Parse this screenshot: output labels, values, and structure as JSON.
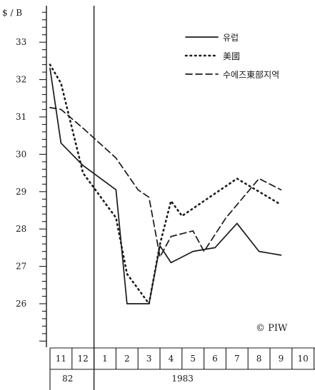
{
  "chart_data": {
    "type": "line",
    "ylabel": "$ / B",
    "ylim": [
      25,
      34
    ],
    "yticks": [
      26,
      27,
      28,
      29,
      30,
      31,
      32,
      33
    ],
    "x_months": [
      "11",
      "12",
      "1",
      "2",
      "3",
      "4",
      "5",
      "6",
      "7",
      "8",
      "9",
      "10"
    ],
    "year_groups": [
      {
        "label": "82",
        "months": [
          "11",
          "12"
        ]
      },
      {
        "label": "1983",
        "months": [
          "1",
          "2",
          "3",
          "4",
          "5",
          "6",
          "7",
          "8",
          "9",
          "10"
        ]
      }
    ],
    "legend_position": "top-right",
    "copyright": "© PIW",
    "series": [
      {
        "name": "유럽",
        "style": "solid",
        "points": [
          {
            "x": 11,
            "y": 32.3
          },
          {
            "x": 11.5,
            "y": 30.3
          },
          {
            "x": 12.5,
            "y": 29.7
          },
          {
            "x": 2,
            "y": 29.05
          },
          {
            "x": 2.5,
            "y": 26.0
          },
          {
            "x": 3.5,
            "y": 26.0
          },
          {
            "x": 4,
            "y": 27.55
          },
          {
            "x": 4.5,
            "y": 27.1
          },
          {
            "x": 5.5,
            "y": 27.4
          },
          {
            "x": 6.5,
            "y": 27.5
          },
          {
            "x": 7.5,
            "y": 28.15
          },
          {
            "x": 8.5,
            "y": 27.4
          },
          {
            "x": 9.5,
            "y": 27.3
          }
        ]
      },
      {
        "name": "美國",
        "style": "dotted",
        "points": [
          {
            "x": 11,
            "y": 32.4
          },
          {
            "x": 11.5,
            "y": 31.9
          },
          {
            "x": 12.5,
            "y": 29.5
          },
          {
            "x": 2,
            "y": 28.3
          },
          {
            "x": 2.5,
            "y": 26.8
          },
          {
            "x": 3.5,
            "y": 26.0
          },
          {
            "x": 4,
            "y": 27.6
          },
          {
            "x": 4.5,
            "y": 28.75
          },
          {
            "x": 5,
            "y": 28.35
          },
          {
            "x": 6.5,
            "y": 28.95
          },
          {
            "x": 7.5,
            "y": 29.35
          },
          {
            "x": 8.5,
            "y": 29.0
          },
          {
            "x": 9.5,
            "y": 28.65
          }
        ]
      },
      {
        "name": "수에즈東部지역",
        "style": "dashed",
        "points": [
          {
            "x": 11,
            "y": 31.25
          },
          {
            "x": 11.5,
            "y": 31.2
          },
          {
            "x": 12.5,
            "y": 30.7
          },
          {
            "x": 2,
            "y": 29.9
          },
          {
            "x": 3,
            "y": 29.05
          },
          {
            "x": 3.5,
            "y": 28.85
          },
          {
            "x": 4,
            "y": 27.25
          },
          {
            "x": 4.5,
            "y": 27.8
          },
          {
            "x": 5.5,
            "y": 27.95
          },
          {
            "x": 6,
            "y": 27.4
          },
          {
            "x": 7,
            "y": 28.3
          },
          {
            "x": 8.5,
            "y": 29.35
          },
          {
            "x": 9.5,
            "y": 29.05
          }
        ]
      }
    ]
  }
}
